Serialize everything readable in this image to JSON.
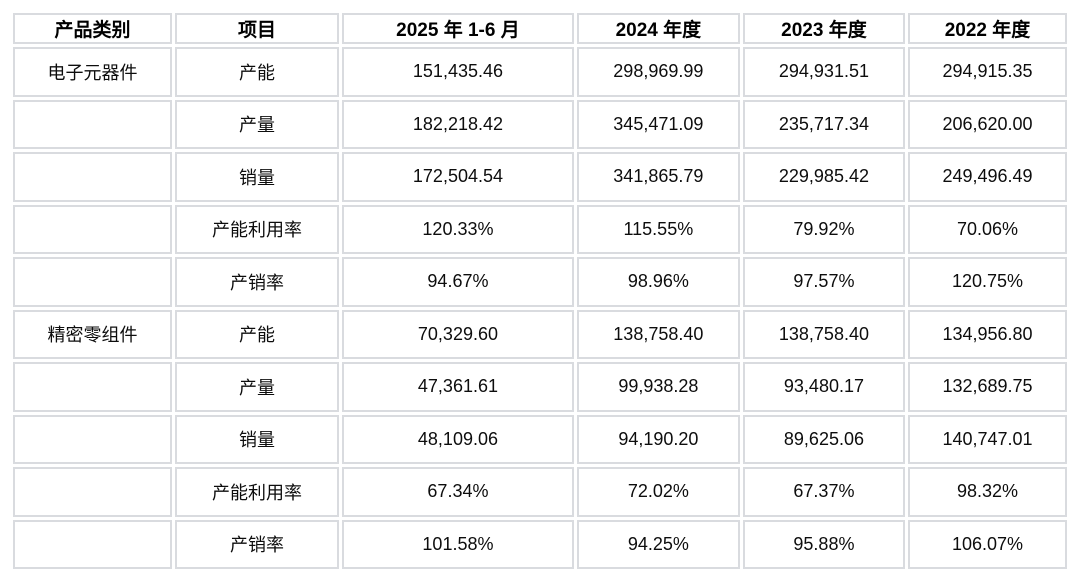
{
  "table": {
    "headers": [
      "产品类别",
      "项目",
      "2025 年 1-6 月",
      "2024 年度",
      "2023 年度",
      "2022 年度"
    ],
    "rows": [
      {
        "category": "电子元器件",
        "item": "产能",
        "values": [
          "151,435.46",
          "298,969.99",
          "294,931.51",
          "294,915.35"
        ]
      },
      {
        "category": "",
        "item": "产量",
        "values": [
          "182,218.42",
          "345,471.09",
          "235,717.34",
          "206,620.00"
        ]
      },
      {
        "category": "",
        "item": "销量",
        "values": [
          "172,504.54",
          "341,865.79",
          "229,985.42",
          "249,496.49"
        ]
      },
      {
        "category": "",
        "item": "产能利用率",
        "values": [
          "120.33%",
          "115.55%",
          "79.92%",
          "70.06%"
        ]
      },
      {
        "category": "",
        "item": "产销率",
        "values": [
          "94.67%",
          "98.96%",
          "97.57%",
          "120.75%"
        ]
      },
      {
        "category": "精密零组件",
        "item": "产能",
        "values": [
          "70,329.60",
          "138,758.40",
          "138,758.40",
          "134,956.80"
        ]
      },
      {
        "category": "",
        "item": "产量",
        "values": [
          "47,361.61",
          "99,938.28",
          "93,480.17",
          "132,689.75"
        ]
      },
      {
        "category": "",
        "item": "销量",
        "values": [
          "48,109.06",
          "94,190.20",
          "89,625.06",
          "140,747.01"
        ]
      },
      {
        "category": "",
        "item": "产能利用率",
        "values": [
          "67.34%",
          "72.02%",
          "67.37%",
          "98.32%"
        ]
      },
      {
        "category": "",
        "item": "产销率",
        "values": [
          "101.58%",
          "94.25%",
          "95.88%",
          "106.07%"
        ]
      }
    ],
    "colors": {
      "border": "#d9dbdf",
      "text": "#0d0d0d",
      "background": "#ffffff"
    }
  }
}
